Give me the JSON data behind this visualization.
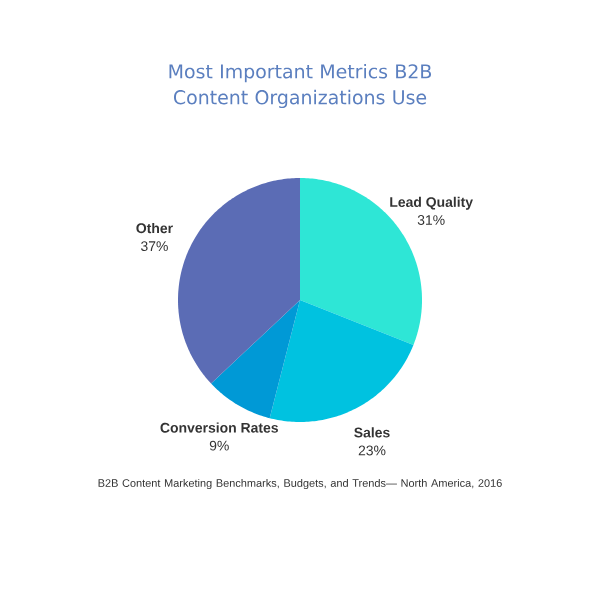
{
  "chart_data": {
    "type": "pie",
    "title": "Most Important Metrics B2B Content Organizations Use",
    "categories": [
      "Lead Quality",
      "Sales",
      "Conversion Rates",
      "Other"
    ],
    "values": [
      31,
      23,
      9,
      37
    ],
    "value_labels": [
      "31%",
      "23%",
      "9%",
      "37%"
    ],
    "colors": [
      "#2ee6d6",
      "#00c2e0",
      "#0099d6",
      "#5b6cb5"
    ],
    "annotations": [
      "B2B Content Marketing Benchmarks, Budgets, and Trends— North America, 2016"
    ]
  }
}
